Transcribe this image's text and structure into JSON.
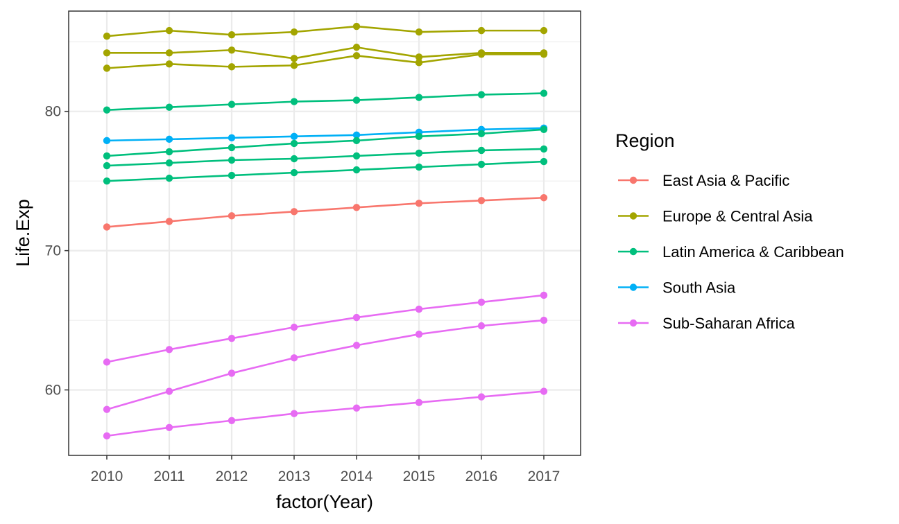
{
  "chart_data": {
    "type": "line",
    "x": [
      "2010",
      "2011",
      "2012",
      "2013",
      "2014",
      "2015",
      "2016",
      "2017"
    ],
    "xlabel": "factor(Year)",
    "ylabel": "Life.Exp",
    "ylim": [
      55.3,
      87.2
    ],
    "yticks": [
      60,
      70,
      80
    ],
    "grid": true,
    "legend": {
      "title": "Region",
      "placement": "right",
      "entries": [
        {
          "label": "East Asia & Pacific",
          "color": "#F8766D"
        },
        {
          "label": "Europe & Central Asia",
          "color": "#A3A500"
        },
        {
          "label": "Latin America & Caribbean",
          "color": "#00BF7D"
        },
        {
          "label": "South Asia",
          "color": "#00B0F6"
        },
        {
          "label": "Sub-Saharan Africa",
          "color": "#E76BF3"
        }
      ]
    },
    "series": [
      {
        "region": "Europe & Central Asia",
        "color": "#A3A500",
        "values": [
          85.4,
          85.8,
          85.5,
          85.7,
          86.1,
          85.7,
          85.8,
          85.8
        ]
      },
      {
        "region": "Europe & Central Asia",
        "color": "#A3A500",
        "values": [
          84.2,
          84.2,
          84.4,
          83.8,
          84.6,
          83.9,
          84.2,
          84.2
        ]
      },
      {
        "region": "Europe & Central Asia",
        "color": "#A3A500",
        "values": [
          83.1,
          83.4,
          83.2,
          83.3,
          84.0,
          83.5,
          84.1,
          84.1
        ]
      },
      {
        "region": "Latin America & Caribbean",
        "color": "#00BF7D",
        "values": [
          80.1,
          80.3,
          80.5,
          80.7,
          80.8,
          81.0,
          81.2,
          81.3
        ]
      },
      {
        "region": "South Asia",
        "color": "#00B0F6",
        "values": [
          77.9,
          78.0,
          78.1,
          78.2,
          78.3,
          78.5,
          78.7,
          78.8
        ]
      },
      {
        "region": "Latin America & Caribbean",
        "color": "#00BF7D",
        "values": [
          76.8,
          77.1,
          77.4,
          77.7,
          77.9,
          78.2,
          78.4,
          78.7
        ]
      },
      {
        "region": "Latin America & Caribbean",
        "color": "#00BF7D",
        "values": [
          76.1,
          76.3,
          76.5,
          76.6,
          76.8,
          77.0,
          77.2,
          77.3
        ]
      },
      {
        "region": "Latin America & Caribbean",
        "color": "#00BF7D",
        "values": [
          75.0,
          75.2,
          75.4,
          75.6,
          75.8,
          76.0,
          76.2,
          76.4
        ]
      },
      {
        "region": "East Asia & Pacific",
        "color": "#F8766D",
        "values": [
          71.7,
          72.1,
          72.5,
          72.8,
          73.1,
          73.4,
          73.6,
          73.8
        ]
      },
      {
        "region": "Sub-Saharan Africa",
        "color": "#E76BF3",
        "values": [
          62.0,
          62.9,
          63.7,
          64.5,
          65.2,
          65.8,
          66.3,
          66.8
        ]
      },
      {
        "region": "Sub-Saharan Africa",
        "color": "#E76BF3",
        "values": [
          58.6,
          59.9,
          61.2,
          62.3,
          63.2,
          64.0,
          64.6,
          65.0
        ]
      },
      {
        "region": "Sub-Saharan Africa",
        "color": "#E76BF3",
        "values": [
          56.7,
          57.3,
          57.8,
          58.3,
          58.7,
          59.1,
          59.5,
          59.9
        ]
      }
    ]
  }
}
